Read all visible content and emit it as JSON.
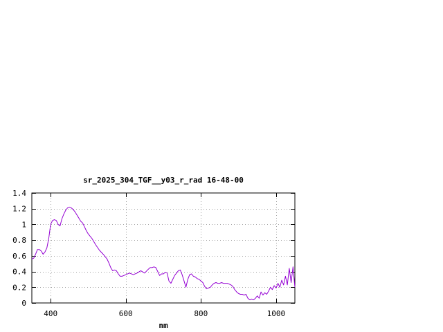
{
  "chart_data": {
    "type": "line",
    "title": "sr_2025_304_TGF__y03_r_rad 16-48-00",
    "xlabel": "nm",
    "ylabel": "",
    "xlim": [
      350,
      1050
    ],
    "ylim": [
      0,
      1.4
    ],
    "xticks": [
      400,
      600,
      800,
      1000
    ],
    "xtick_labels": [
      "400",
      "600",
      "800",
      "1000"
    ],
    "yticks": [
      0,
      0.2,
      0.4,
      0.6,
      0.8,
      1,
      1.2,
      1.4
    ],
    "ytick_labels": [
      "0",
      "0.2",
      "0.4",
      "0.6",
      "0.8",
      "1",
      "1.2",
      "1.4"
    ],
    "grid": true,
    "legend": "none",
    "line_color": "#9400d3",
    "series": [
      {
        "x": [
          350,
          355,
          360,
          365,
          370,
          375,
          380,
          385,
          390,
          395,
          400,
          405,
          410,
          415,
          420,
          425,
          430,
          435,
          440,
          445,
          450,
          455,
          460,
          465,
          470,
          475,
          480,
          485,
          490,
          495,
          500,
          510,
          520,
          530,
          540,
          550,
          555,
          560,
          565,
          570,
          575,
          580,
          585,
          590,
          595,
          600,
          610,
          620,
          630,
          640,
          650,
          660,
          665,
          670,
          675,
          680,
          685,
          690,
          695,
          700,
          705,
          710,
          715,
          720,
          725,
          730,
          735,
          740,
          745,
          750,
          755,
          760,
          765,
          770,
          775,
          780,
          785,
          790,
          795,
          800,
          805,
          810,
          815,
          820,
          825,
          830,
          835,
          840,
          845,
          850,
          855,
          860,
          865,
          870,
          875,
          880,
          885,
          890,
          895,
          900,
          905,
          910,
          915,
          920,
          925,
          930,
          935,
          940,
          945,
          950,
          955,
          960,
          965,
          970,
          975,
          980,
          985,
          990,
          995,
          1000,
          1005,
          1010,
          1015,
          1020,
          1025,
          1030,
          1035,
          1040,
          1045,
          1050
        ],
        "values": [
          0.56,
          0.57,
          0.62,
          0.68,
          0.68,
          0.66,
          0.62,
          0.65,
          0.7,
          0.82,
          1.0,
          1.05,
          1.06,
          1.05,
          1.0,
          0.98,
          1.07,
          1.13,
          1.18,
          1.21,
          1.22,
          1.21,
          1.19,
          1.16,
          1.12,
          1.08,
          1.04,
          1.02,
          0.97,
          0.92,
          0.88,
          0.82,
          0.74,
          0.67,
          0.62,
          0.56,
          0.51,
          0.45,
          0.41,
          0.42,
          0.41,
          0.37,
          0.34,
          0.34,
          0.35,
          0.36,
          0.38,
          0.36,
          0.38,
          0.41,
          0.38,
          0.43,
          0.45,
          0.45,
          0.46,
          0.45,
          0.4,
          0.35,
          0.37,
          0.37,
          0.39,
          0.38,
          0.28,
          0.25,
          0.3,
          0.35,
          0.38,
          0.41,
          0.42,
          0.36,
          0.28,
          0.2,
          0.3,
          0.36,
          0.37,
          0.34,
          0.33,
          0.31,
          0.3,
          0.28,
          0.26,
          0.21,
          0.18,
          0.19,
          0.2,
          0.23,
          0.25,
          0.26,
          0.25,
          0.25,
          0.26,
          0.25,
          0.25,
          0.25,
          0.24,
          0.23,
          0.21,
          0.17,
          0.14,
          0.12,
          0.11,
          0.11,
          0.1,
          0.11,
          0.06,
          0.04,
          0.05,
          0.04,
          0.06,
          0.09,
          0.06,
          0.14,
          0.1,
          0.13,
          0.11,
          0.15,
          0.2,
          0.17,
          0.22,
          0.19,
          0.25,
          0.2,
          0.29,
          0.23,
          0.34,
          0.23,
          0.44,
          0.26,
          0.46,
          0.2
        ]
      }
    ]
  }
}
